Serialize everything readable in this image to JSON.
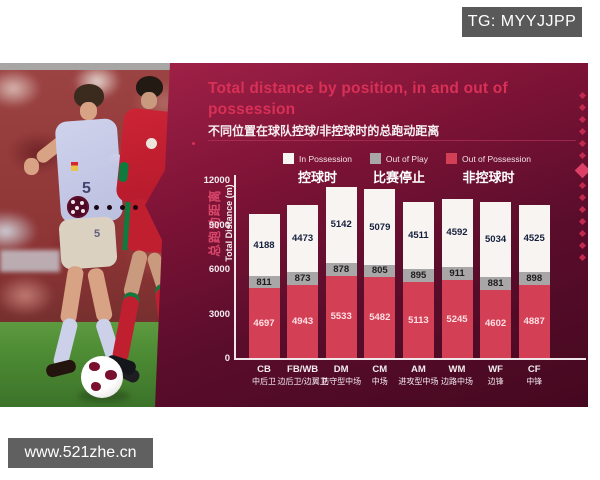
{
  "watermarks": {
    "tg_badge": "TG: MYYJJPP",
    "site_badge": "www.521zhe.cn"
  },
  "panel": {
    "title": "Total distance by position, in and out of possession",
    "subtitle_zh": "不同位置在球队控球/非控球时的总跑动距离"
  },
  "legend": [
    {
      "label": "In Possession",
      "label_zh": "控球时",
      "color": "#f7f4f2"
    },
    {
      "label": "Out of Play",
      "label_zh": "比赛停止",
      "color": "#a8a6a7"
    },
    {
      "label": "Out of Possession",
      "label_zh": "非控球时",
      "color": "#d34056"
    }
  ],
  "chart_data": {
    "type": "bar",
    "stacked": true,
    "title": "Total distance by position, in and out of possession",
    "ylabel": "Total Distance (m)",
    "ylabel_zh": "总跑动距离",
    "ylim": [
      0,
      12000
    ],
    "yticks": [
      0,
      3000,
      6000,
      9000,
      12000
    ],
    "grid": false,
    "legend_position": "top",
    "categories": [
      {
        "code": "CB",
        "zh": "中后卫"
      },
      {
        "code": "FB/WB",
        "zh": "边后卫/边翼卫"
      },
      {
        "code": "DM",
        "zh": "防守型中场"
      },
      {
        "code": "CM",
        "zh": "中场"
      },
      {
        "code": "AM",
        "zh": "进攻型中场"
      },
      {
        "code": "WM",
        "zh": "边路中场"
      },
      {
        "code": "WF",
        "zh": "边锋"
      },
      {
        "code": "CF",
        "zh": "中锋"
      }
    ],
    "series": [
      {
        "name": "Out of Possession",
        "color": "#d34056",
        "text_color": "#ffdfe4",
        "values": [
          4697,
          4943,
          5533,
          5482,
          5113,
          5245,
          4602,
          4887
        ]
      },
      {
        "name": "Out of Play",
        "color": "#a8a6a7",
        "text_color": "#202020",
        "values": [
          811,
          873,
          878,
          805,
          895,
          911,
          881,
          898
        ]
      },
      {
        "name": "In Possession",
        "color": "#f7f4f2",
        "text_color": "#16203c",
        "values": [
          4188,
          4473,
          5142,
          5079,
          4511,
          4592,
          5034,
          4525
        ]
      }
    ]
  },
  "photo": {
    "jersey_number": "5",
    "shorts_number": "5"
  }
}
